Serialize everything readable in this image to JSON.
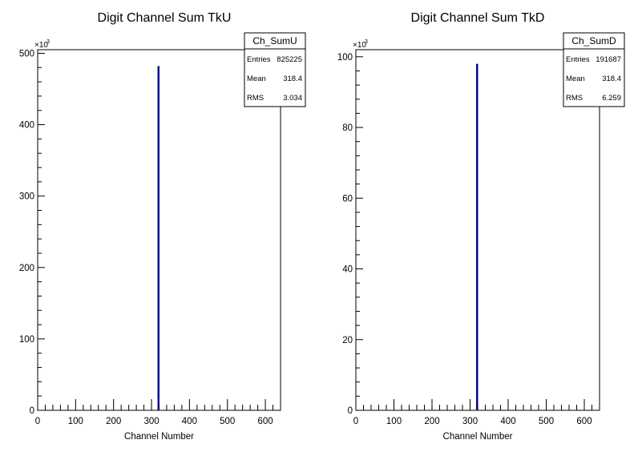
{
  "chart_data": [
    {
      "type": "bar",
      "title": "Digit Channel Sum TkU",
      "xlabel": "Channel Number",
      "ylabel": "",
      "xlim": [
        0,
        640
      ],
      "ylim": [
        0,
        505
      ],
      "x_ticks": [
        "0",
        "100",
        "200",
        "300",
        "400",
        "500",
        "600"
      ],
      "y_ticks": [
        "0",
        "100",
        "200",
        "300",
        "400",
        "500"
      ],
      "y_multiplier": "×10",
      "y_multiplier_exp": "3",
      "series": [
        {
          "x": [
            318
          ],
          "values": [
            482
          ]
        }
      ],
      "bar_color": "#000080",
      "stats": {
        "name": "Ch_SumU",
        "rows": [
          {
            "label": "Entries",
            "value": "825225"
          },
          {
            "label": "Mean",
            "value": "318.4"
          },
          {
            "label": "RMS",
            "value": "3.034"
          }
        ]
      }
    },
    {
      "type": "bar",
      "title": "Digit Channel Sum TkD",
      "xlabel": "Channel Number",
      "ylabel": "",
      "xlim": [
        0,
        640
      ],
      "ylim": [
        0,
        102
      ],
      "x_ticks": [
        "0",
        "100",
        "200",
        "300",
        "400",
        "500",
        "600"
      ],
      "y_ticks": [
        "0",
        "20",
        "40",
        "60",
        "80",
        "100"
      ],
      "y_multiplier": "×10",
      "y_multiplier_exp": "3",
      "series": [
        {
          "x": [
            318
          ],
          "values": [
            98
          ]
        }
      ],
      "bar_color": "#000080",
      "stats": {
        "name": "Ch_SumD",
        "rows": [
          {
            "label": "Entries",
            "value": "191687"
          },
          {
            "label": "Mean",
            "value": "318.4"
          },
          {
            "label": "RMS",
            "value": "6.259"
          }
        ]
      }
    }
  ]
}
